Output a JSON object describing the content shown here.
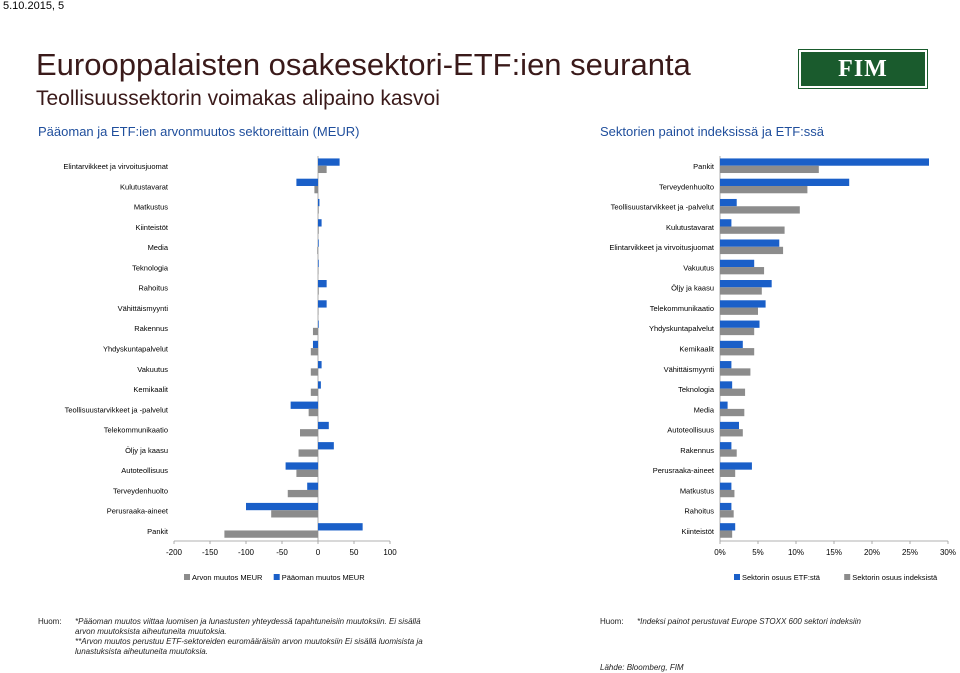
{
  "header": {
    "date": "5.10.2015, 5",
    "title": "Eurooppalaisten osakesektori-ETF:ien seuranta",
    "subtitle": "Teollisuussektorin voimakas alipaino kasvoi",
    "logo_text": "FIM",
    "left_heading": "Pääoman ja ETF:ien arvonmuutos sektoreittain (MEUR)",
    "right_heading": "Sektorien painot indeksissä ja ETF:ssä"
  },
  "colors": {
    "blue": "#1a5fc8",
    "gray": "#8c8c8c",
    "heading": "#1f4e9c",
    "title": "#3a1a1a",
    "logo": "#1a5b2d"
  },
  "chart_data": [
    {
      "type": "bar",
      "orientation": "horizontal",
      "categories": [
        "Elintarvikkeet ja virvoitusjuomat",
        "Kulutustavarat",
        "Matkustus",
        "Kiinteistöt",
        "Media",
        "Teknologia",
        "Rahoitus",
        "Vähittäismyynti",
        "Rakennus",
        "Yhdyskuntapalvelut",
        "Vakuutus",
        "Kemikaalit",
        "Teollisuustarvikkeet ja -palvelut",
        "Telekommunikaatio",
        "Öljy ja kaasu",
        "Autoteollisuus",
        "Terveydenhuolto",
        "Perusraaka-aineet",
        "Pankit"
      ],
      "series": [
        {
          "name": "Arvon muutos MEUR",
          "values": [
            12,
            -5,
            1,
            1,
            -1,
            0,
            1,
            0,
            -7,
            -10,
            -10,
            -10,
            -13,
            -25,
            -27,
            -30,
            -42,
            -65,
            -130
          ]
        },
        {
          "name": "Pääoman muutos MEUR",
          "values": [
            30,
            -30,
            2,
            5,
            1,
            1,
            12,
            12,
            1,
            -7,
            5,
            4,
            -38,
            15,
            22,
            -45,
            -15,
            -100,
            62
          ]
        }
      ],
      "xticks": [
        "-200",
        "-150",
        "-100",
        "-50",
        "0",
        "50",
        "100"
      ],
      "xlim": [
        -200,
        100
      ],
      "legend_position": "bottom"
    },
    {
      "type": "bar",
      "orientation": "horizontal",
      "categories": [
        "Pankit",
        "Terveydenhuolto",
        "Teollisuustarvikkeet ja -palvelut",
        "Kulutustavarat",
        "Elintarvikkeet ja virvoitusjuomat",
        "Vakuutus",
        "Öljy ja kaasu",
        "Telekommunikaatio",
        "Yhdyskuntapalvelut",
        "Kemikaalit",
        "Vähittäismyynti",
        "Teknologia",
        "Media",
        "Autoteollisuus",
        "Rakennus",
        "Perusraaka-aineet",
        "Matkustus",
        "Rahoitus",
        "Kiinteistöt"
      ],
      "series": [
        {
          "name": "Sektorin osuus ETF:stä",
          "values": [
            27.5,
            17.0,
            2.2,
            1.5,
            7.8,
            4.5,
            6.8,
            6.0,
            5.2,
            3.0,
            1.5,
            1.6,
            1.0,
            2.5,
            1.5,
            4.2,
            1.5,
            1.5,
            2.0
          ]
        },
        {
          "name": "Sektorin osuus indeksistä",
          "values": [
            13.0,
            11.5,
            10.5,
            8.5,
            8.3,
            5.8,
            5.5,
            5.0,
            4.5,
            4.5,
            4.0,
            3.3,
            3.2,
            3.0,
            2.2,
            2.0,
            1.9,
            1.8,
            1.6
          ]
        }
      ],
      "xticks": [
        "0%",
        "5%",
        "10%",
        "15%",
        "20%",
        "25%",
        "30%"
      ],
      "xlim": [
        0,
        30
      ],
      "legend_position": "bottom"
    }
  ],
  "notes": {
    "left_label": "Huom:",
    "left_lines": [
      "*Pääoman muutos viittaa luomisen ja lunastusten yhteydessä tapahtuneisiin muutoksiin. Ei sisällä",
      "arvon muutoksista aiheutuneita muutoksia.",
      "**Arvon muutos perustuu ETF-sektoreiden euromääräisiin arvon muutoksiin Ei sisällä luomisista ja",
      "lunastuksista aiheutuneita muutoksia."
    ],
    "right_label": "Huom:",
    "right_line": "*Indeksi painot perustuvat Europe STOXX 600 sektori indeksiin",
    "source": "Lähde: Bloomberg, FIM"
  }
}
